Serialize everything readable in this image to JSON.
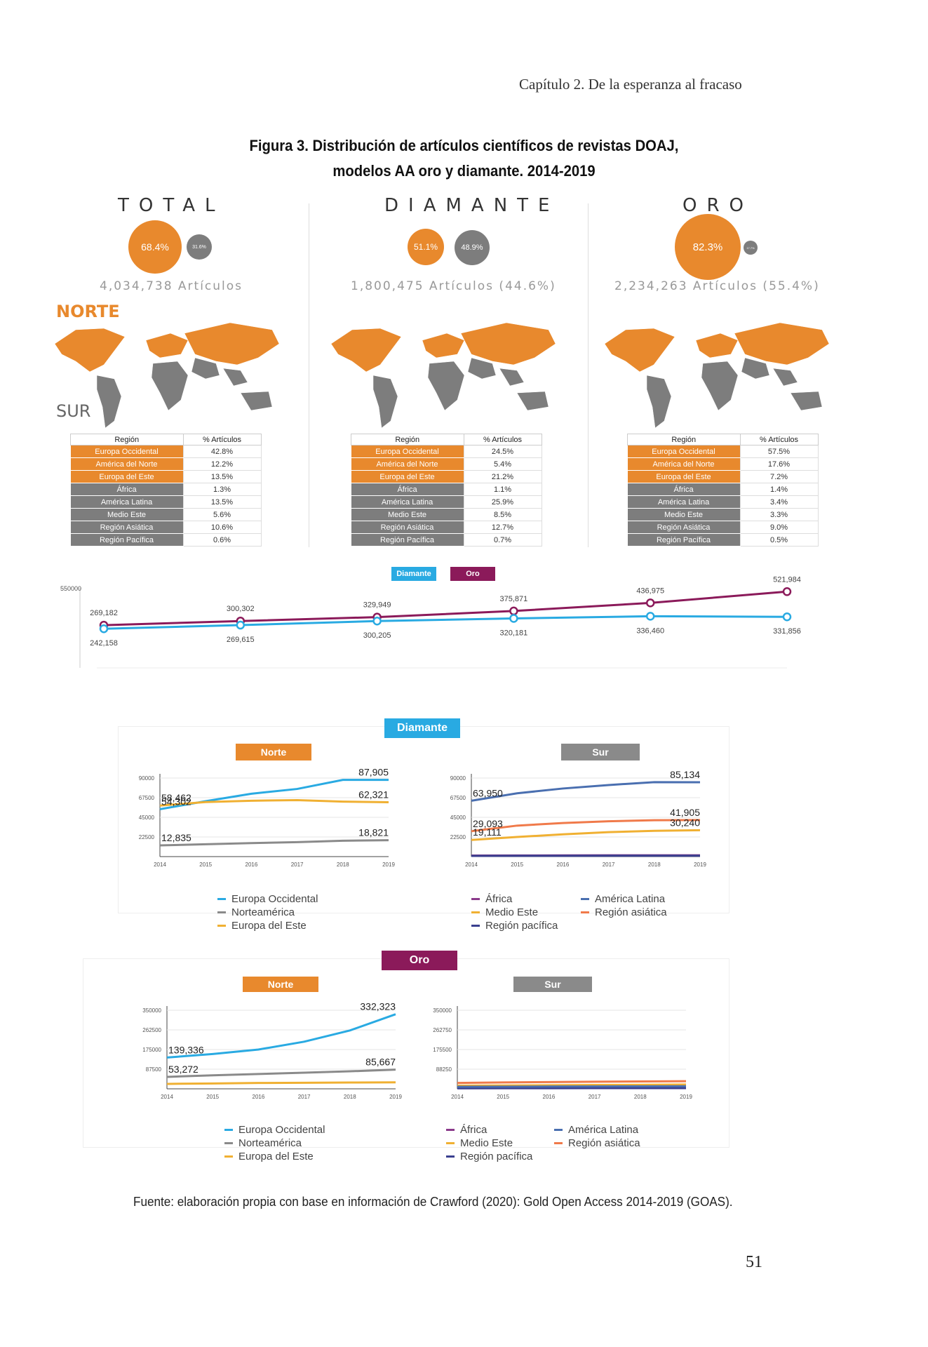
{
  "header": "Capítulo 2. De la esperanza al fracaso",
  "figure_title_line1": "Figura 3. Distribución de artículos científicos de revistas DOAJ,",
  "figure_title_line2": "modelos AA oro y diamante. 2014-2019",
  "labels": {
    "norte": "NORTE",
    "sur": "SUR"
  },
  "colors": {
    "orange": "#e8892d",
    "grey": "#7d7d7d",
    "blue": "#29aae2",
    "purple": "#8b1a5a"
  },
  "panels": [
    {
      "title": "TOTAL",
      "pct_big": "68.4%",
      "pct_small": "31.6%",
      "count": "4,034,738 Artículos"
    },
    {
      "title": "DIAMANTE",
      "pct_big": "51.1%",
      "pct_small": "48.9%",
      "count": "1,800,475 Artículos (44.6%)"
    },
    {
      "title": "ORO",
      "pct_big": "82.3%",
      "pct_small": "17.7%",
      "count": "2,234,263 Artículos (55.4%)"
    }
  ],
  "table_headers": {
    "region": "Región",
    "pct": "% Artículos"
  },
  "regions": [
    "Europa Occidental",
    "América del Norte",
    "Europa del Este",
    "África",
    "América Latina",
    "Medio Este",
    "Región Asiática",
    "Región Pacífica"
  ],
  "region_group": [
    "norte",
    "norte",
    "norte",
    "sur",
    "sur",
    "sur",
    "sur",
    "sur"
  ],
  "tables": [
    [
      "42.8%",
      "12.2%",
      "13.5%",
      "1.3%",
      "13.5%",
      "5.6%",
      "10.6%",
      "0.6%"
    ],
    [
      "24.5%",
      "5.4%",
      "21.2%",
      "1.1%",
      "25.9%",
      "8.5%",
      "12.7%",
      "0.7%"
    ],
    [
      "57.5%",
      "17.6%",
      "7.2%",
      "1.4%",
      "3.4%",
      "3.3%",
      "9.0%",
      "0.5%"
    ]
  ],
  "chart_data": [
    {
      "type": "line",
      "title": "",
      "x": [
        2014,
        2015,
        2016,
        2017,
        2018,
        2019
      ],
      "series": [
        {
          "name": "Oro",
          "color": "#8b1a5a",
          "values": [
            269182,
            300302,
            329949,
            375871,
            436975,
            521984
          ],
          "labels": [
            "269,182",
            "300,302",
            "329,949",
            "375,871",
            "436,975",
            "521,984"
          ]
        },
        {
          "name": "Diamante",
          "color": "#29aae2",
          "values": [
            242158,
            269615,
            300205,
            320181,
            336460,
            331856
          ],
          "labels": [
            "242,158",
            "269,615",
            "300,205",
            "320,181",
            "336,460",
            "331,856"
          ]
        }
      ],
      "ylim": [
        0,
        550000
      ],
      "yticks": [
        "550000"
      ],
      "legend": "top"
    },
    {
      "type": "line",
      "section": "Diamante",
      "title": "Norte",
      "x": [
        2014,
        2015,
        2016,
        2017,
        2018,
        2019
      ],
      "yticks": [
        "22500",
        "45000",
        "67500",
        "90000"
      ],
      "ylim": [
        0,
        90000
      ],
      "series": [
        {
          "name": "Europa Occidental",
          "color": "#29aae2",
          "values": [
            54302,
            63500,
            72000,
            77500,
            87905,
            87905
          ]
        },
        {
          "name": "Norteamérica",
          "color": "#8a8a8a",
          "values": [
            12835,
            14200,
            15500,
            16600,
            18200,
            18821
          ]
        },
        {
          "name": "Europa del Este",
          "color": "#f0b032",
          "values": [
            58462,
            62500,
            64000,
            64700,
            63000,
            62321
          ]
        }
      ],
      "point_labels": [
        {
          "text": "58,462",
          "series": 2,
          "at": "start"
        },
        {
          "text": "54,302",
          "series": 0,
          "at": "start"
        },
        {
          "text": "12,835",
          "series": 1,
          "at": "start"
        },
        {
          "text": "87,905",
          "series": 0,
          "at": "end"
        },
        {
          "text": "62,321",
          "series": 2,
          "at": "end"
        },
        {
          "text": "18,821",
          "series": 1,
          "at": "end"
        }
      ]
    },
    {
      "type": "line",
      "section": "Diamante",
      "title": "Sur",
      "x": [
        2014,
        2015,
        2016,
        2017,
        2018,
        2019
      ],
      "yticks": [
        "22500",
        "45000",
        "67500",
        "90000"
      ],
      "ylim": [
        0,
        90000
      ],
      "series": [
        {
          "name": "África",
          "color": "#8b3a8b",
          "values": [
            1200,
            1300,
            1400,
            1500,
            1500,
            1500
          ]
        },
        {
          "name": "Medio Este",
          "color": "#f0b032",
          "values": [
            19111,
            22500,
            25500,
            28000,
            29500,
            30240
          ]
        },
        {
          "name": "Región pacífica",
          "color": "#3a3f8f",
          "values": [
            800,
            900,
            900,
            1000,
            1000,
            1000
          ]
        },
        {
          "name": "América Latina",
          "color": "#4a6fb0",
          "values": [
            63950,
            72500,
            78000,
            82000,
            85300,
            85134
          ]
        },
        {
          "name": "Región asiática",
          "color": "#f07a4a",
          "values": [
            29093,
            35500,
            38500,
            40500,
            41700,
            41905
          ]
        }
      ],
      "point_labels": [
        {
          "text": "63,950",
          "series": 3,
          "at": "start"
        },
        {
          "text": "29,093",
          "series": 4,
          "at": "start"
        },
        {
          "text": "19,111",
          "series": 1,
          "at": "start"
        },
        {
          "text": "85,134",
          "series": 3,
          "at": "end"
        },
        {
          "text": "41,905",
          "series": 4,
          "at": "end"
        },
        {
          "text": "30,240",
          "series": 1,
          "at": "end"
        }
      ]
    },
    {
      "type": "line",
      "section": "Oro",
      "title": "Norte",
      "x": [
        2014,
        2015,
        2016,
        2017,
        2018,
        2019
      ],
      "yticks": [
        "87500",
        "175000",
        "262500",
        "350000"
      ],
      "ylim": [
        0,
        350000
      ],
      "series": [
        {
          "name": "Europa Occidental",
          "color": "#29aae2",
          "values": [
            139336,
            155000,
            175000,
            210000,
            260000,
            332323
          ]
        },
        {
          "name": "Norteamérica",
          "color": "#8a8a8a",
          "values": [
            53272,
            60000,
            66000,
            72000,
            78000,
            85667
          ]
        },
        {
          "name": "Europa del Este",
          "color": "#f0b032",
          "values": [
            22000,
            24000,
            26000,
            27000,
            28000,
            29000
          ]
        }
      ],
      "point_labels": [
        {
          "text": "139,336",
          "series": 0,
          "at": "start"
        },
        {
          "text": "53,272",
          "series": 1,
          "at": "start"
        },
        {
          "text": "332,323",
          "series": 0,
          "at": "end"
        },
        {
          "text": "85,667",
          "series": 1,
          "at": "end"
        }
      ]
    },
    {
      "type": "line",
      "section": "Oro",
      "title": "Sur",
      "x": [
        2014,
        2015,
        2016,
        2017,
        2018,
        2019
      ],
      "yticks": [
        "88250",
        "175500",
        "262750",
        "350000"
      ],
      "ylim": [
        0,
        350000
      ],
      "series": [
        {
          "name": "África",
          "color": "#8b3a8b",
          "values": [
            6000,
            6500,
            7000,
            7500,
            8000,
            8500
          ]
        },
        {
          "name": "Medio Este",
          "color": "#f0b032",
          "values": [
            14000,
            15000,
            16000,
            17000,
            18000,
            19000
          ]
        },
        {
          "name": "Región pacífica",
          "color": "#3a3f8f",
          "values": [
            2500,
            2700,
            2900,
            3000,
            3100,
            3200
          ]
        },
        {
          "name": "América Latina",
          "color": "#4a6fb0",
          "values": [
            9000,
            9500,
            10000,
            10500,
            11000,
            11500
          ]
        },
        {
          "name": "Región asiática",
          "color": "#f07a4a",
          "values": [
            26000,
            28500,
            30000,
            31500,
            33000,
            34000
          ]
        }
      ],
      "point_labels": []
    }
  ],
  "sections": {
    "diamante": "Diamante",
    "oro": "Oro",
    "norte": "Norte",
    "sur": "Sur"
  },
  "top_legend": {
    "diamante": "Diamante",
    "oro": "Oro"
  },
  "legend_norte": [
    "Europa Occidental",
    "Norteamérica",
    "Europa del Este"
  ],
  "legend_sur_left": [
    "África",
    "Medio Este",
    "Región pacífica"
  ],
  "legend_sur_right": [
    "América Latina",
    "Región asiática"
  ],
  "source": "Fuente: elaboración propia con base en información de Crawford (2020): Gold Open Access 2014-2019 (GOAS).",
  "page_number": "51"
}
